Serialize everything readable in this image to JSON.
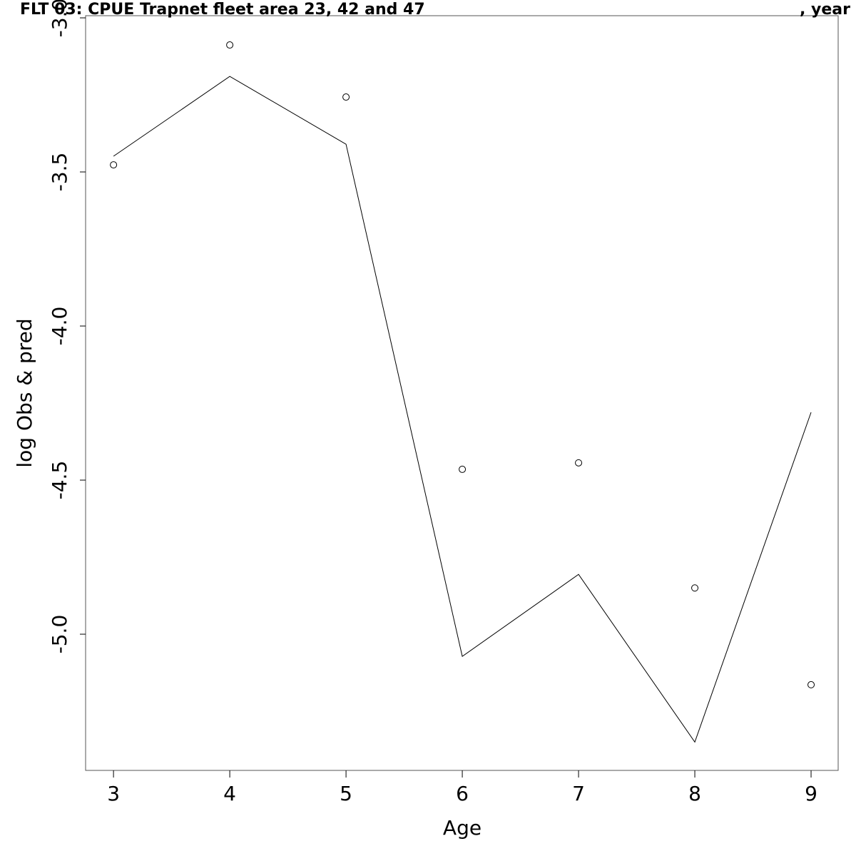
{
  "chart_data": {
    "type": "line",
    "title": "FLT 03: CPUE Trapnet fleet area 23, 42 and 47",
    "title_end": ", year",
    "x_label": "Age",
    "y_label": "log Obs & pred",
    "x": [
      3,
      4,
      5,
      6,
      7,
      8,
      9
    ],
    "series": [
      {
        "type": "scatter",
        "color": "#000000",
        "values": [
          -3.477,
          -3.088,
          -3.257,
          -4.465,
          -4.444,
          -4.85,
          -5.164
        ]
      },
      {
        "type": "line",
        "color": "#000000",
        "values": [
          -3.449,
          -3.19,
          -3.41,
          -5.072,
          -4.806,
          -5.35,
          -4.28
        ]
      }
    ],
    "xlim": [
      2.76,
      9.233
    ],
    "ylim": [
      -5.442,
      -2.993
    ],
    "xticks": [
      3,
      4,
      5,
      6,
      7,
      8,
      9
    ],
    "yticks": [
      {
        "value": -3,
        "label": "-3.0"
      },
      -3.5,
      {
        "value": -4,
        "label": "-4.0"
      },
      -4.5,
      {
        "value": -5,
        "label": "-5.0"
      }
    ]
  }
}
